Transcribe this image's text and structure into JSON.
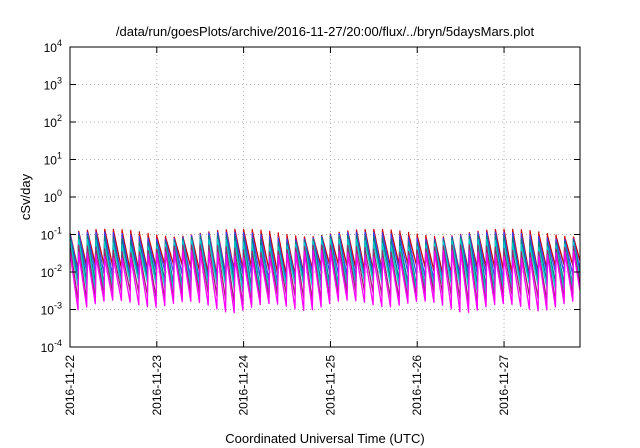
{
  "chart_data": {
    "type": "line",
    "title": "/data/run/goesPlots/archive/2016-11-27/20:00/flux/../bryn/5daysMars.plot",
    "xlabel": "Coordinated Universal Time (UTC)",
    "ylabel": "cSv/day",
    "yscale": "log",
    "ylim": [
      0.0001,
      10000
    ],
    "xlim": [
      "2016-11-22",
      "2016-11-27T21:00"
    ],
    "grid": true,
    "legend": "none",
    "y_ticks": [
      {
        "base": "10",
        "exp": "-4"
      },
      {
        "base": "10",
        "exp": "-3"
      },
      {
        "base": "10",
        "exp": "-2"
      },
      {
        "base": "10",
        "exp": "-1"
      },
      {
        "base": "10",
        "exp": "0"
      },
      {
        "base": "10",
        "exp": "1"
      },
      {
        "base": "10",
        "exp": "2"
      },
      {
        "base": "10",
        "exp": "3"
      },
      {
        "base": "10",
        "exp": "4"
      }
    ],
    "x_ticks": [
      "2016-11-22",
      "2016-11-23",
      "2016-11-24",
      "2016-11-25",
      "2016-11-26",
      "2016-11-27"
    ],
    "pattern": {
      "description_free": true,
      "period_hours": 2.4,
      "series": [
        {
          "color": "#cc0000",
          "peak": 0.13,
          "trough": 0.012
        },
        {
          "color": "#4040ff",
          "peak": 0.11,
          "trough": 0.008
        },
        {
          "color": "#008080",
          "peak": 0.09,
          "trough": 0.005
        },
        {
          "color": "#00cccc",
          "peak": 0.07,
          "trough": 0.004
        },
        {
          "color": "#9a2a6a",
          "peak": 0.05,
          "trough": 0.0022
        },
        {
          "color": "#ff00ff",
          "peak": 0.035,
          "trough": 0.0013
        }
      ]
    }
  }
}
